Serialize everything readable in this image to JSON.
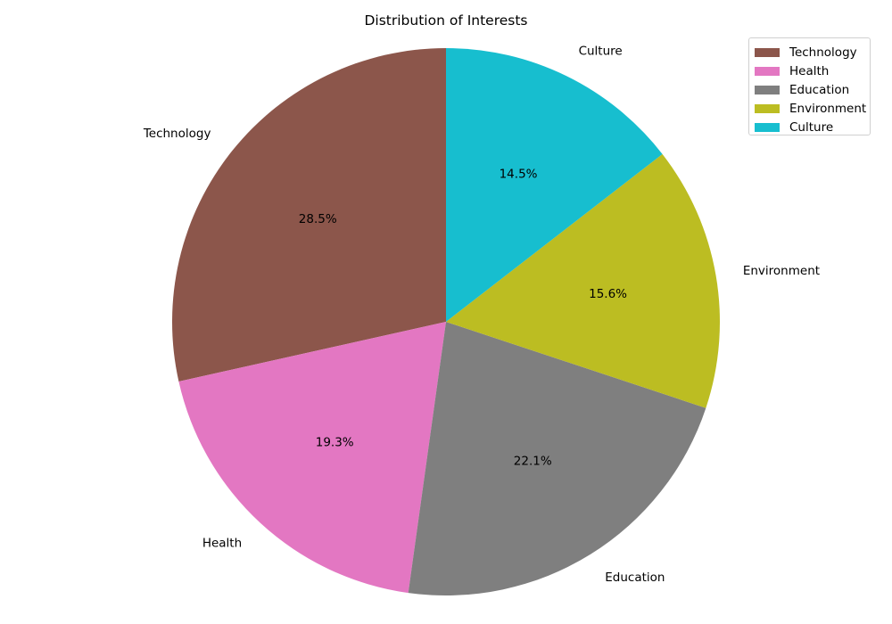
{
  "chart_data": {
    "type": "pie",
    "title": "Distribution of Interests",
    "categories": [
      "Technology",
      "Health",
      "Education",
      "Environment",
      "Culture"
    ],
    "values": [
      28.5,
      19.3,
      22.1,
      15.6,
      14.5
    ],
    "value_labels": [
      "28.5%",
      "19.3%",
      "22.1%",
      "15.6%",
      "14.5%"
    ],
    "colors": [
      "#8c564b",
      "#e377c2",
      "#7f7f7f",
      "#bcbd22",
      "#17becf"
    ],
    "start_angle_deg": 90,
    "direction": "counterclockwise",
    "legend": {
      "position": "top-right",
      "entries": [
        "Technology",
        "Health",
        "Education",
        "Environment",
        "Culture"
      ]
    }
  }
}
